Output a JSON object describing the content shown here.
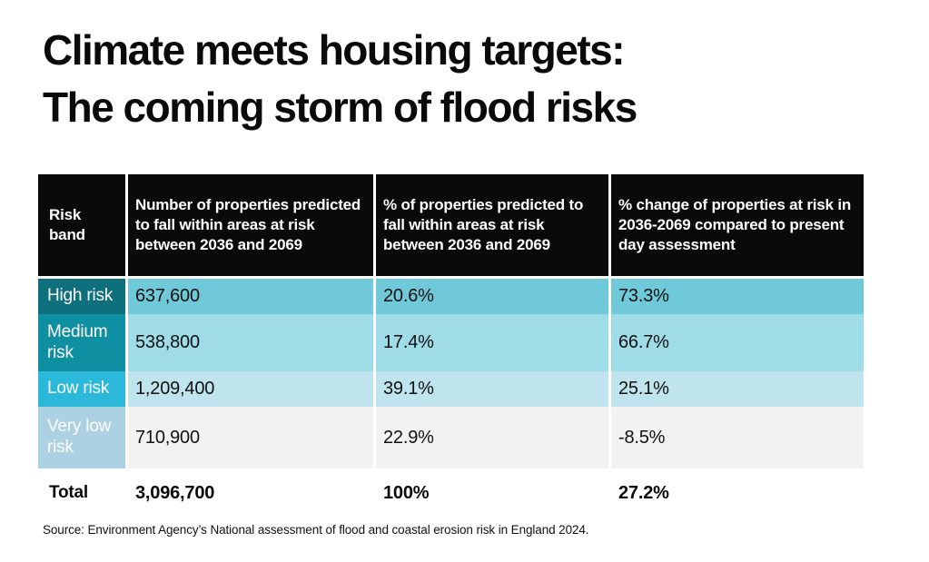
{
  "title": {
    "line1": "Climate meets housing targets:",
    "line2": "The coming storm of flood risks"
  },
  "chart_data": {
    "type": "table",
    "title": "Climate meets housing targets: The coming storm of flood risks",
    "columns": [
      "Risk band",
      "Number of properties predicted to fall within areas at risk between 2036 and 2069",
      "% of properties predicted to fall within areas at risk between 2036 and 2069",
      "% change of properties at risk in 2036-2069 compared to present day assessment"
    ],
    "rows": [
      {
        "band": "High risk",
        "properties": "637,600",
        "share": "20.6%",
        "change": "73.3%"
      },
      {
        "band": "Medium risk",
        "properties": "538,800",
        "share": "17.4%",
        "change": "66.7%"
      },
      {
        "band": "Low risk",
        "properties": "1,209,400",
        "share": "39.1%",
        "change": "25.1%"
      },
      {
        "band": "Very low risk",
        "properties": "710,900",
        "share": "22.9%",
        "change": "-8.5%"
      }
    ],
    "total": {
      "band": "Total",
      "properties": "3,096,700",
      "share": "100%",
      "change": "27.2%"
    },
    "source": "Source: Environment Agency’s National assessment of flood and coastal erosion risk in England 2024."
  },
  "colors": {
    "header-bg": "#0a0a0a",
    "header-text": "#ffffff",
    "band-high": "#0e6f7d",
    "band-medium": "#0f8fa2",
    "band-low": "#2bb8d9",
    "band-verylow": "#abd1e2",
    "row-high": "#70c9d9",
    "row-medium": "#9edde8",
    "row-low": "#bfe4ee",
    "row-verylow": "#f2f2f3",
    "text-dark": "#111111"
  }
}
